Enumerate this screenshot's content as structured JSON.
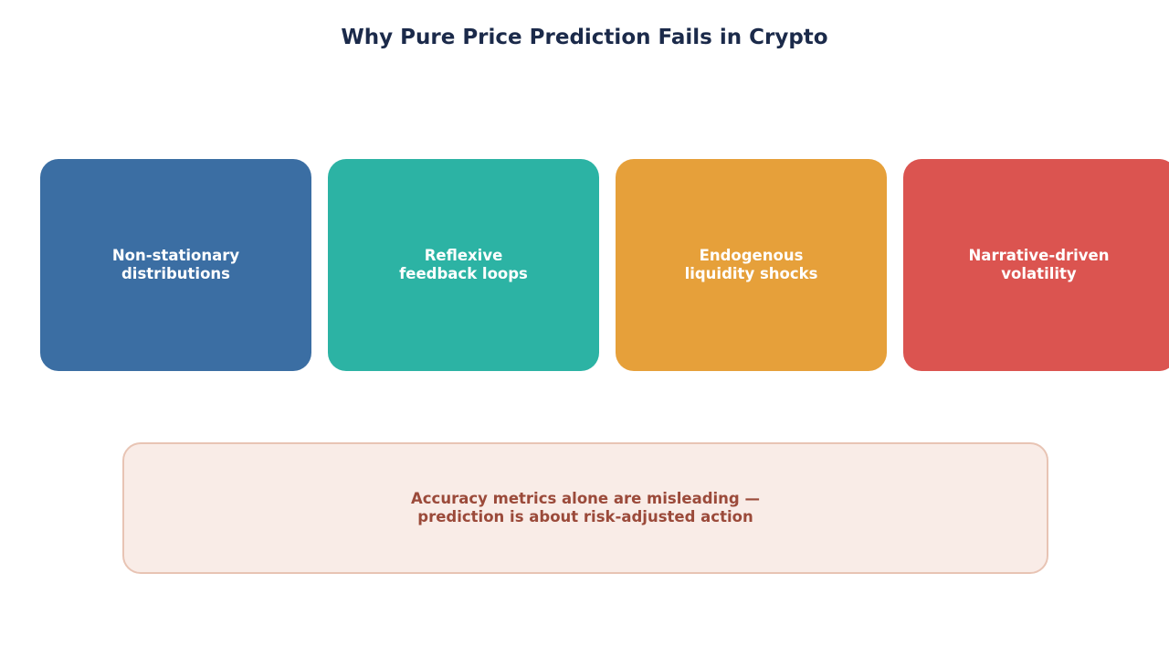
{
  "title": "Why Pure Price Prediction Fails in Crypto",
  "cards": [
    [
      "Non-stationary",
      "distributions"
    ],
    [
      "Reflexive",
      "feedback loops"
    ],
    [
      "Endogenous",
      "liquidity shocks"
    ],
    [
      "Narrative-driven",
      "volatility"
    ]
  ],
  "callout": [
    "Accuracy metrics alone are misleading —",
    "prediction is about risk-adjusted action"
  ]
}
